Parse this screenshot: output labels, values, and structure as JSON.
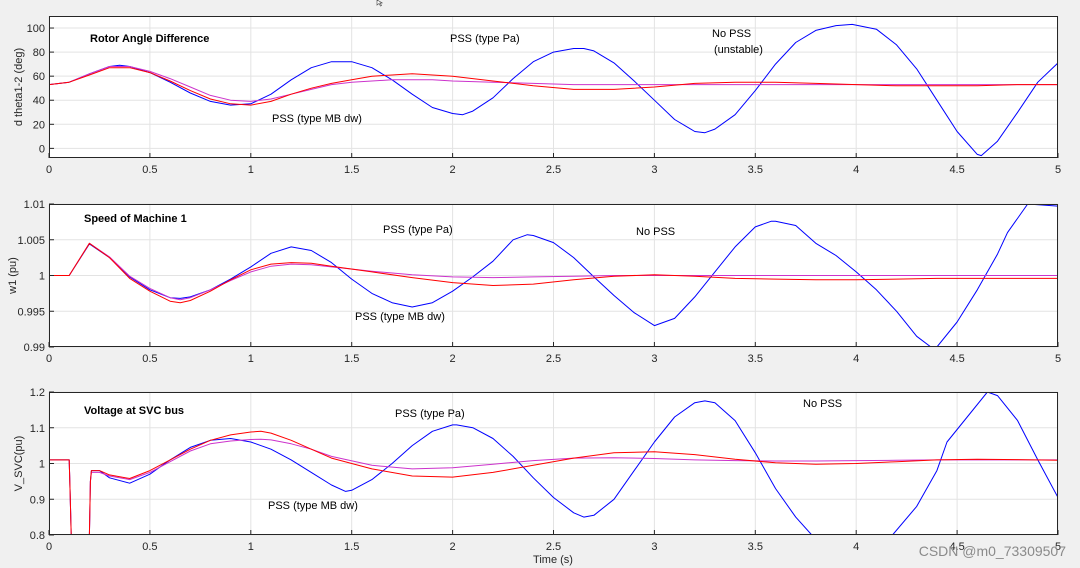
{
  "colors": {
    "no_pss": "#0000ff",
    "pss_mb": "#ff0000",
    "pss_pa": "#cc33cc",
    "figure_bg": "#f0f0f0",
    "axes_bg": "#ffffff",
    "grid": "#e3e3e3"
  },
  "watermark": "CSDN @m0_73309507",
  "chart_data": [
    {
      "type": "line",
      "title": "Rotor Angle Difference",
      "xlabel": "",
      "ylabel": "d theta1-2 (deg)",
      "xlim": [
        0,
        5
      ],
      "ylim": [
        -8,
        110
      ],
      "grid": true,
      "x_ticks": [
        "0",
        "0.5",
        "1",
        "1.5",
        "2",
        "2.5",
        "3",
        "3.5",
        "4",
        "4.5",
        "5"
      ],
      "y_ticks": [
        "0",
        "20",
        "40",
        "60",
        "80",
        "100"
      ],
      "annotations": [
        "PSS (type Pa)",
        "No PSS",
        "(unstable)",
        "PSS (type MB dw)"
      ],
      "series": [
        {
          "name": "No PSS",
          "x": [
            0,
            0.1,
            0.2,
            0.3,
            0.35,
            0.4,
            0.5,
            0.6,
            0.7,
            0.8,
            0.9,
            1.0,
            1.1,
            1.2,
            1.3,
            1.4,
            1.5,
            1.6,
            1.7,
            1.8,
            1.9,
            2.0,
            2.05,
            2.1,
            2.2,
            2.3,
            2.4,
            2.5,
            2.6,
            2.65,
            2.7,
            2.8,
            2.9,
            3.0,
            3.1,
            3.2,
            3.25,
            3.3,
            3.4,
            3.5,
            3.6,
            3.7,
            3.8,
            3.9,
            3.98,
            4.1,
            4.2,
            4.3,
            4.4,
            4.5,
            4.6,
            4.62,
            4.7,
            4.8,
            4.9,
            5.0
          ],
          "y": [
            53,
            55,
            62,
            68,
            69,
            68,
            63,
            55,
            46,
            39,
            36,
            37,
            45,
            57,
            67,
            72,
            72,
            67,
            57,
            45,
            34,
            29,
            28,
            31,
            42,
            58,
            72,
            80,
            83,
            83,
            81,
            71,
            56,
            40,
            24,
            14,
            13,
            16,
            28,
            48,
            70,
            88,
            98,
            102,
            103,
            99,
            86,
            66,
            40,
            14,
            -5,
            -6,
            6,
            30,
            55,
            71
          ]
        },
        {
          "name": "PSS (type MB dw)",
          "x": [
            0,
            0.1,
            0.2,
            0.3,
            0.4,
            0.5,
            0.6,
            0.7,
            0.8,
            0.9,
            1.0,
            1.1,
            1.2,
            1.3,
            1.4,
            1.5,
            1.6,
            1.7,
            1.8,
            1.9,
            2.0,
            2.2,
            2.4,
            2.6,
            2.8,
            3.0,
            3.2,
            3.4,
            3.6,
            3.8,
            4.0,
            4.2,
            4.4,
            4.6,
            4.8,
            5.0
          ],
          "y": [
            53,
            55,
            61,
            67,
            67,
            63,
            56,
            48,
            41,
            37,
            36,
            39,
            45,
            50,
            54,
            57,
            60,
            61,
            62,
            61,
            60,
            56,
            52,
            49,
            49,
            51,
            54,
            55,
            55,
            54,
            53,
            52,
            52,
            52,
            53,
            53
          ]
        },
        {
          "name": "PSS (type Pa)",
          "x": [
            0,
            0.1,
            0.2,
            0.3,
            0.4,
            0.5,
            0.6,
            0.7,
            0.8,
            0.9,
            1.0,
            1.1,
            1.2,
            1.3,
            1.4,
            1.5,
            1.6,
            1.7,
            1.8,
            1.9,
            2.0,
            2.2,
            2.4,
            2.6,
            2.8,
            3.0,
            3.2,
            3.4,
            3.6,
            3.8,
            4.0,
            4.2,
            4.4,
            4.6,
            4.8,
            5.0
          ],
          "y": [
            53,
            55,
            62,
            68,
            68,
            64,
            58,
            51,
            44,
            40,
            39,
            41,
            45,
            49,
            53,
            55,
            56,
            57,
            57,
            57,
            56,
            55,
            54,
            53,
            53,
            53,
            53,
            53,
            53,
            53,
            53,
            53,
            53,
            53,
            53,
            53
          ]
        }
      ]
    },
    {
      "type": "line",
      "title": "Speed of Machine 1",
      "xlabel": "",
      "ylabel": "w1 (pu)",
      "xlim": [
        0,
        5
      ],
      "ylim": [
        0.99,
        1.01
      ],
      "grid": true,
      "x_ticks": [
        "0",
        "0.5",
        "1",
        "1.5",
        "2",
        "2.5",
        "3",
        "3.5",
        "4",
        "4.5",
        "5"
      ],
      "y_ticks": [
        "0.99",
        "0.995",
        "1",
        "1.005",
        "1.01"
      ],
      "annotations": [
        "PSS (type Pa)",
        "No PSS",
        "PSS (type MB dw)"
      ],
      "series": [
        {
          "name": "No PSS",
          "x": [
            0,
            0.1,
            0.2,
            0.3,
            0.4,
            0.5,
            0.6,
            0.65,
            0.7,
            0.8,
            0.9,
            1.0,
            1.1,
            1.2,
            1.3,
            1.4,
            1.5,
            1.6,
            1.7,
            1.8,
            1.9,
            2.0,
            2.1,
            2.2,
            2.3,
            2.37,
            2.4,
            2.5,
            2.6,
            2.7,
            2.8,
            2.9,
            3.0,
            3.1,
            3.2,
            3.3,
            3.4,
            3.5,
            3.58,
            3.6,
            3.7,
            3.8,
            3.9,
            4.0,
            4.1,
            4.2,
            4.3,
            4.37,
            4.4,
            4.5,
            4.6,
            4.7,
            4.75,
            4.85,
            5.0
          ],
          "y": [
            1.0,
            1.0,
            1.0044,
            1.0025,
            0.9998,
            0.998,
            0.9969,
            0.9968,
            0.997,
            0.998,
            0.9995,
            1.0012,
            1.0031,
            1.004,
            1.0035,
            1.0018,
            0.9995,
            0.9975,
            0.9962,
            0.9956,
            0.9962,
            0.9978,
            0.9998,
            1.002,
            1.005,
            1.0057,
            1.0056,
            1.0046,
            1.0025,
            0.9998,
            0.9972,
            0.9948,
            0.993,
            0.994,
            0.997,
            1.0005,
            1.004,
            1.0068,
            1.0076,
            1.0076,
            1.007,
            1.0045,
            1.0028,
            1.0005,
            0.998,
            0.995,
            0.9915,
            0.99,
            0.99,
            0.9935,
            0.998,
            1.003,
            1.006,
            1.01,
            1.0097
          ]
        },
        {
          "name": "PSS (type MB dw)",
          "x": [
            0,
            0.1,
            0.2,
            0.3,
            0.4,
            0.5,
            0.6,
            0.65,
            0.7,
            0.8,
            0.9,
            1.0,
            1.1,
            1.2,
            1.3,
            1.4,
            1.6,
            1.8,
            2.0,
            2.2,
            2.4,
            2.6,
            2.8,
            3.0,
            3.2,
            3.4,
            3.6,
            3.8,
            4.0,
            4.2,
            4.4,
            4.6,
            4.8,
            5.0
          ],
          "y": [
            1.0,
            1.0,
            1.0045,
            1.0025,
            0.9996,
            0.9978,
            0.9964,
            0.9962,
            0.9965,
            0.9978,
            0.9994,
            1.0008,
            1.0016,
            1.0018,
            1.0017,
            1.0013,
            1.0005,
            0.9997,
            0.999,
            0.9986,
            0.9988,
            0.9994,
            0.9999,
            1.0001,
            0.9999,
            0.9996,
            0.9995,
            0.9994,
            0.9994,
            0.9995,
            0.9996,
            0.9996,
            0.9996,
            0.9996
          ]
        },
        {
          "name": "PSS (type Pa)",
          "x": [
            0,
            0.1,
            0.2,
            0.3,
            0.4,
            0.5,
            0.6,
            0.65,
            0.7,
            0.8,
            0.9,
            1.0,
            1.1,
            1.2,
            1.3,
            1.4,
            1.6,
            1.8,
            2.0,
            2.2,
            2.4,
            2.6,
            2.8,
            3.0,
            3.2,
            3.4,
            3.6,
            3.8,
            4.0,
            4.2,
            4.4,
            4.6,
            4.8,
            5.0
          ],
          "y": [
            1.0,
            1.0,
            1.0045,
            1.0026,
            0.9999,
            0.9982,
            0.9969,
            0.9966,
            0.9969,
            0.998,
            0.9993,
            1.0005,
            1.0013,
            1.0016,
            1.0015,
            1.0012,
            1.0006,
            1.0001,
            0.9998,
            0.9997,
            0.9998,
            0.9999,
            1.0,
            1.0,
            1.0,
            1.0,
            1.0,
            1.0,
            1.0,
            1.0,
            1.0,
            1.0,
            1.0,
            1.0
          ]
        }
      ]
    },
    {
      "type": "line",
      "title": "Voltage at  SVC bus",
      "xlabel": "Time (s)",
      "ylabel": "V_SVC(pu)",
      "xlim": [
        0,
        5
      ],
      "ylim": [
        0.8,
        1.2
      ],
      "grid": true,
      "x_ticks": [
        "0",
        "0.5",
        "1",
        "1.5",
        "2",
        "2.5",
        "3",
        "3.5",
        "4",
        "4.5",
        "5"
      ],
      "y_ticks": [
        "0.8",
        "0.9",
        "1",
        "1.1",
        "1.2"
      ],
      "annotations": [
        "PSS (type Pa)",
        "No PSS",
        "PSS (type MB dw)"
      ],
      "series": [
        {
          "name": "No PSS",
          "x": [
            0,
            0.1,
            0.105,
            0.11,
            0.2,
            0.205,
            0.21,
            0.25,
            0.3,
            0.4,
            0.5,
            0.6,
            0.7,
            0.8,
            0.9,
            1.0,
            1.1,
            1.2,
            1.3,
            1.4,
            1.47,
            1.5,
            1.6,
            1.7,
            1.8,
            1.9,
            2.0,
            2.02,
            2.1,
            2.2,
            2.3,
            2.4,
            2.5,
            2.6,
            2.65,
            2.7,
            2.8,
            2.9,
            3.0,
            3.1,
            3.2,
            3.25,
            3.3,
            3.4,
            3.5,
            3.6,
            3.7,
            3.78,
            4.18,
            4.3,
            4.4,
            4.45,
            4.65,
            4.7,
            4.8,
            4.9,
            5.0
          ],
          "y": [
            1.01,
            1.01,
            0.91,
            0.8,
            0.8,
            0.95,
            0.98,
            0.98,
            0.96,
            0.945,
            0.97,
            1.01,
            1.045,
            1.065,
            1.07,
            1.06,
            1.04,
            1.01,
            0.975,
            0.94,
            0.922,
            0.925,
            0.955,
            1.0,
            1.05,
            1.09,
            1.108,
            1.108,
            1.1,
            1.07,
            1.02,
            0.96,
            0.905,
            0.862,
            0.85,
            0.855,
            0.9,
            0.98,
            1.06,
            1.13,
            1.17,
            1.175,
            1.17,
            1.12,
            1.03,
            0.93,
            0.85,
            0.8,
            0.8,
            0.88,
            0.98,
            1.06,
            1.2,
            1.19,
            1.12,
            1.01,
            0.905
          ]
        },
        {
          "name": "PSS (type MB dw)",
          "x": [
            0,
            0.1,
            0.105,
            0.11,
            0.2,
            0.205,
            0.21,
            0.25,
            0.3,
            0.4,
            0.5,
            0.6,
            0.7,
            0.8,
            0.9,
            1.0,
            1.05,
            1.1,
            1.2,
            1.3,
            1.4,
            1.6,
            1.8,
            2.0,
            2.2,
            2.4,
            2.6,
            2.8,
            3.0,
            3.2,
            3.4,
            3.6,
            3.8,
            4.0,
            4.2,
            4.4,
            4.6,
            4.8,
            5.0
          ],
          "y": [
            1.01,
            1.01,
            0.91,
            0.8,
            0.8,
            0.95,
            0.98,
            0.98,
            0.968,
            0.958,
            0.98,
            1.01,
            1.04,
            1.065,
            1.08,
            1.088,
            1.09,
            1.085,
            1.065,
            1.04,
            1.015,
            0.985,
            0.965,
            0.962,
            0.975,
            0.995,
            1.015,
            1.03,
            1.033,
            1.025,
            1.012,
            1.002,
            0.998,
            1.0,
            1.005,
            1.01,
            1.012,
            1.011,
            1.009
          ]
        },
        {
          "name": "PSS (type Pa)",
          "x": [
            0,
            0.1,
            0.105,
            0.11,
            0.2,
            0.205,
            0.21,
            0.25,
            0.3,
            0.4,
            0.5,
            0.6,
            0.7,
            0.8,
            0.9,
            1.0,
            1.05,
            1.1,
            1.2,
            1.3,
            1.4,
            1.6,
            1.8,
            2.0,
            2.2,
            2.4,
            2.6,
            2.8,
            3.0,
            3.2,
            3.4,
            3.6,
            3.8,
            4.0,
            4.2,
            4.4,
            4.6,
            4.8,
            5.0
          ],
          "y": [
            1.01,
            1.01,
            0.91,
            0.8,
            0.8,
            0.95,
            0.975,
            0.975,
            0.965,
            0.955,
            0.975,
            1.005,
            1.035,
            1.055,
            1.063,
            1.067,
            1.068,
            1.066,
            1.055,
            1.04,
            1.02,
            0.995,
            0.985,
            0.988,
            0.998,
            1.008,
            1.015,
            1.016,
            1.014,
            1.01,
            1.008,
            1.007,
            1.007,
            1.008,
            1.009,
            1.01,
            1.01,
            1.01,
            1.01
          ]
        }
      ]
    }
  ]
}
